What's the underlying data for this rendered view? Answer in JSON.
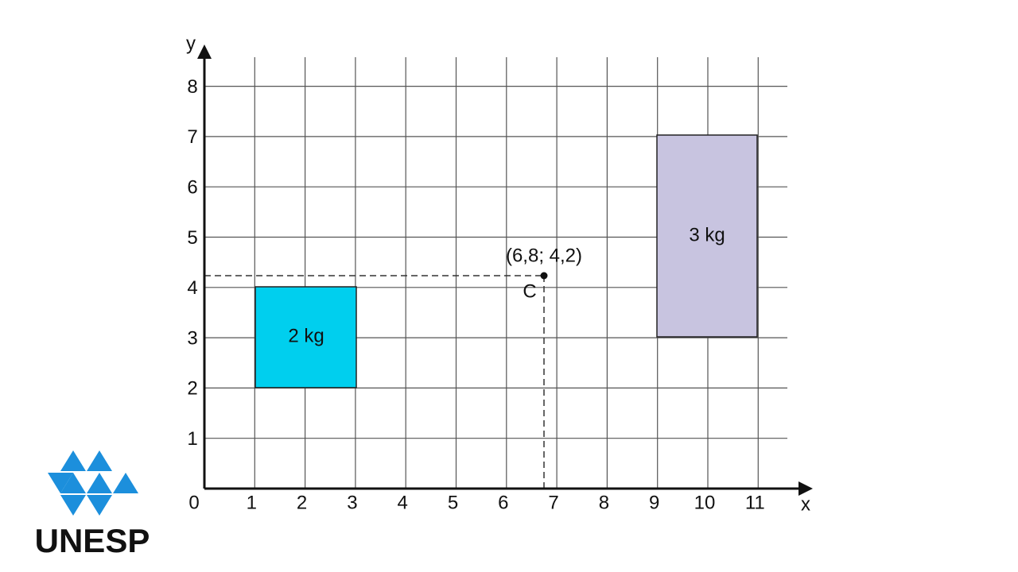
{
  "axes": {
    "x_label": "x",
    "y_label": "y",
    "origin_label": "0",
    "x_ticks": [
      "1",
      "2",
      "3",
      "4",
      "5",
      "6",
      "7",
      "8",
      "9",
      "10",
      "11"
    ],
    "y_ticks": [
      "1",
      "2",
      "3",
      "4",
      "5",
      "6",
      "7",
      "8"
    ]
  },
  "bodies": [
    {
      "label": "2 kg"
    },
    {
      "label": "3 kg"
    }
  ],
  "center_of_mass": {
    "label": "C",
    "coordinates": "(6,8; 4,2)"
  },
  "logo": {
    "text": "UNESP"
  }
}
